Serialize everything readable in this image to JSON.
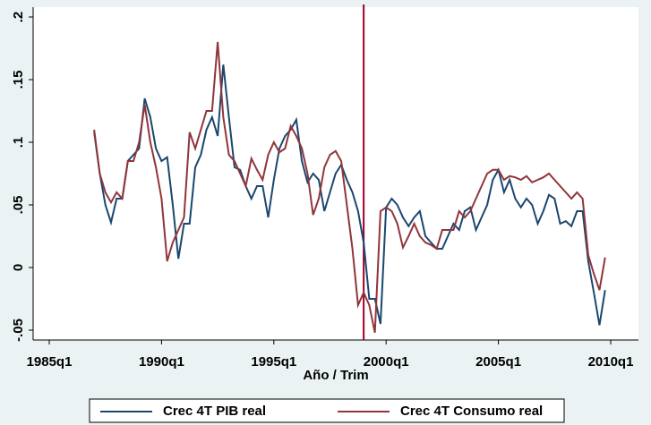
{
  "chart_data": {
    "type": "line",
    "x": [
      "1987q1",
      "1987q2",
      "1987q3",
      "1987q4",
      "1988q1",
      "1988q2",
      "1988q3",
      "1988q4",
      "1989q1",
      "1989q2",
      "1989q3",
      "1989q4",
      "1990q1",
      "1990q2",
      "1990q3",
      "1990q4",
      "1991q1",
      "1991q2",
      "1991q3",
      "1991q4",
      "1992q1",
      "1992q2",
      "1992q3",
      "1992q4",
      "1993q1",
      "1993q2",
      "1993q3",
      "1993q4",
      "1994q1",
      "1994q2",
      "1994q3",
      "1994q4",
      "1995q1",
      "1995q2",
      "1995q3",
      "1995q4",
      "1996q1",
      "1996q2",
      "1996q3",
      "1996q4",
      "1997q1",
      "1997q2",
      "1997q3",
      "1997q4",
      "1998q1",
      "1998q2",
      "1998q3",
      "1998q4",
      "1999q1",
      "1999q2",
      "1999q3",
      "1999q4",
      "2000q1",
      "2000q2",
      "2000q3",
      "2000q4",
      "2001q1",
      "2001q2",
      "2001q3",
      "2001q4",
      "2002q1",
      "2002q2",
      "2002q3",
      "2002q4",
      "2003q1",
      "2003q2",
      "2003q3",
      "2003q4",
      "2004q1",
      "2004q2",
      "2004q3",
      "2004q4",
      "2005q1",
      "2005q2",
      "2005q3",
      "2005q4",
      "2006q1",
      "2006q2",
      "2006q3",
      "2006q4",
      "2007q1",
      "2007q2",
      "2007q3",
      "2007q4",
      "2008q1",
      "2008q2",
      "2008q3",
      "2008q4",
      "2009q1",
      "2009q2",
      "2009q3",
      "2009q4"
    ],
    "series": [
      {
        "name": "Crec 4T PIB real",
        "color": "#1a476f",
        "values": [
          0.108,
          0.075,
          0.05,
          0.036,
          0.055,
          0.055,
          0.085,
          0.09,
          0.095,
          0.135,
          0.12,
          0.095,
          0.085,
          0.088,
          0.05,
          0.007,
          0.035,
          0.035,
          0.08,
          0.09,
          0.11,
          0.12,
          0.105,
          0.162,
          0.12,
          0.08,
          0.078,
          0.065,
          0.055,
          0.065,
          0.065,
          0.04,
          0.07,
          0.095,
          0.105,
          0.11,
          0.118,
          0.085,
          0.068,
          0.075,
          0.07,
          0.045,
          0.06,
          0.075,
          0.082,
          0.07,
          0.06,
          0.045,
          0.02,
          -0.025,
          -0.025,
          -0.045,
          0.048,
          0.055,
          0.05,
          0.04,
          0.033,
          0.04,
          0.045,
          0.025,
          0.02,
          0.015,
          0.015,
          0.025,
          0.035,
          0.03,
          0.045,
          0.048,
          0.03,
          0.04,
          0.05,
          0.07,
          0.078,
          0.06,
          0.07,
          0.055,
          0.048,
          0.055,
          0.05,
          0.035,
          0.045,
          0.058,
          0.055,
          0.035,
          0.037,
          0.033,
          0.045,
          0.045,
          0.005,
          -0.02,
          -0.046,
          -0.018
        ]
      },
      {
        "name": "Crec 4T Consumo real",
        "color": "#90353b",
        "values": [
          0.11,
          0.075,
          0.06,
          0.052,
          0.06,
          0.055,
          0.085,
          0.085,
          0.1,
          0.13,
          0.1,
          0.08,
          0.055,
          0.005,
          0.02,
          0.03,
          0.04,
          0.108,
          0.095,
          0.11,
          0.125,
          0.125,
          0.18,
          0.12,
          0.09,
          0.085,
          0.075,
          0.065,
          0.087,
          0.078,
          0.07,
          0.09,
          0.1,
          0.092,
          0.095,
          0.113,
          0.105,
          0.095,
          0.075,
          0.042,
          0.055,
          0.08,
          0.09,
          0.093,
          0.085,
          0.05,
          0.015,
          -0.03,
          -0.02,
          -0.03,
          -0.052,
          0.045,
          0.048,
          0.045,
          0.035,
          0.016,
          0.025,
          0.035,
          0.025,
          0.02,
          0.018,
          0.015,
          0.03,
          0.03,
          0.03,
          0.045,
          0.04,
          0.045,
          0.055,
          0.065,
          0.075,
          0.078,
          0.078,
          0.07,
          0.073,
          0.072,
          0.07,
          0.073,
          0.068,
          0.07,
          0.072,
          0.075,
          0.07,
          0.065,
          0.06,
          0.055,
          0.06,
          0.055,
          0.01,
          -0.005,
          -0.018,
          0.008
        ]
      }
    ],
    "xlabel": "Año / Trim",
    "xlim": [
      "1985q1",
      "2010q1"
    ],
    "xticks": [
      "1985q1",
      "1990q1",
      "1995q1",
      "2000q1",
      "2005q1",
      "2010q1"
    ],
    "ylim": [
      -0.06,
      0.2
    ],
    "yticks": [
      {
        "value": -0.05,
        "label": "-.05"
      },
      0,
      {
        "value": 0.05,
        "label": ".05"
      },
      {
        "value": 0.1,
        "label": ".1"
      },
      {
        "value": 0.15,
        "label": ".15"
      },
      {
        "value": 0.2,
        "label": ".2"
      }
    ],
    "vline": {
      "x": "1999q1",
      "color": "#a0002a"
    }
  }
}
